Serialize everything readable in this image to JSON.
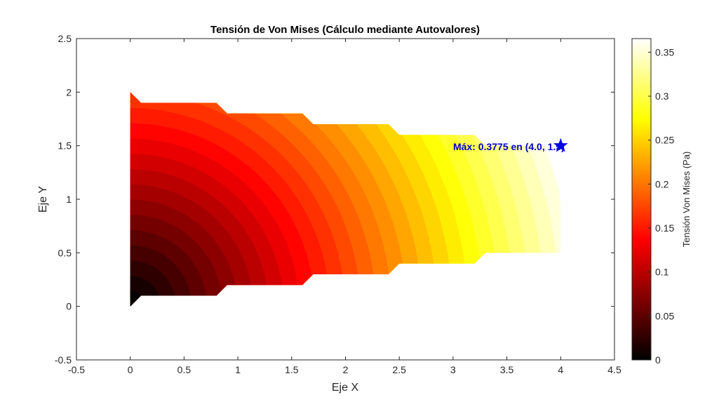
{
  "chart_data": {
    "type": "contour",
    "title": "Tensión de Von Mises (Cálculo mediante Autovalores)",
    "xlabel": "Eje X",
    "ylabel": "Eje Y",
    "xlim": [
      -0.5,
      4.5
    ],
    "ylim": [
      -0.5,
      2.5
    ],
    "xticks": [
      "-0.5",
      "0",
      "0.5",
      "1",
      "1.5",
      "2",
      "2.5",
      "3",
      "3.5",
      "4",
      "4.5"
    ],
    "yticks": [
      "-0.5",
      "0",
      "0.5",
      "1",
      "1.5",
      "2",
      "2.5"
    ],
    "grid": false,
    "colormap": "hot",
    "clim": [
      0,
      0.3655
    ],
    "colorbar": {
      "label": "Tensión Von Mises (Pa)",
      "ticks": [
        "0",
        "0.05",
        "0.1",
        "0.15",
        "0.2",
        "0.25",
        "0.3",
        "0.35"
      ],
      "location": "right"
    },
    "domain_outline": [
      [
        0,
        0
      ],
      [
        0.1,
        0.1
      ],
      [
        0.8,
        0.1
      ],
      [
        0.9,
        0.2
      ],
      [
        1.6,
        0.2
      ],
      [
        1.7,
        0.3
      ],
      [
        2.4,
        0.3
      ],
      [
        2.5,
        0.4
      ],
      [
        3.2,
        0.4
      ],
      [
        3.3,
        0.5
      ],
      [
        4.0,
        0.5
      ],
      [
        4.0,
        1.5
      ],
      [
        3.3,
        1.5
      ],
      [
        3.2,
        1.6
      ],
      [
        2.5,
        1.6
      ],
      [
        2.4,
        1.7
      ],
      [
        1.7,
        1.7
      ],
      [
        1.6,
        1.8
      ],
      [
        0.9,
        1.8
      ],
      [
        0.8,
        1.9
      ],
      [
        0.1,
        1.9
      ],
      [
        0,
        2.0
      ]
    ],
    "field": "radial from origin (0,0), increasing with distance",
    "levels": 30,
    "max": {
      "value": 0.3775,
      "x": 4.0,
      "y": 1.5,
      "marker": "pentagram",
      "color": "#0000ff"
    },
    "annotation": "Máx: 0.3775 en (4.0, 1.5)"
  }
}
